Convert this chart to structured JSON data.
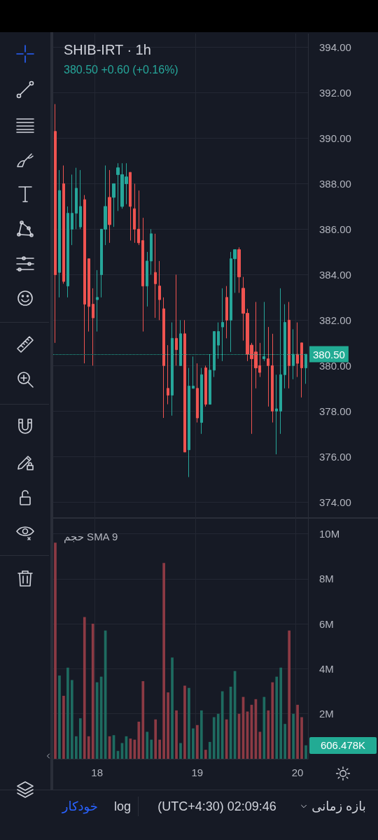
{
  "chart_data": [
    {
      "type": "candlestick",
      "title": "SHIB-IRT · 1h",
      "subtitle": "380.50 +0.60 (+0.16%)",
      "categories": [
        null,
        null,
        null,
        null,
        null,
        null,
        null,
        null,
        null,
        null,
        "18",
        null,
        null,
        null,
        null,
        null,
        null,
        null,
        null,
        null,
        null,
        null,
        null,
        null,
        null,
        null,
        null,
        null,
        null,
        null,
        null,
        null,
        null,
        null,
        "19",
        null,
        null,
        null,
        null,
        null,
        null,
        null,
        null,
        null,
        null,
        null,
        null,
        null,
        null,
        null,
        null,
        null,
        null,
        null,
        null,
        null,
        null,
        null,
        "20",
        null,
        null
      ],
      "ohlc": [
        [
          390.3,
          391.5,
          381.0,
          384.0
        ],
        [
          384.1,
          388.6,
          383.0,
          387.7
        ],
        [
          388.0,
          388.8,
          383.6,
          383.7
        ],
        [
          383.5,
          387.0,
          383.0,
          386.7
        ],
        [
          386.0,
          388.4,
          385.3,
          386.7
        ],
        [
          386.7,
          388.7,
          386.0,
          387.8
        ],
        [
          386.1,
          388.6,
          386.0,
          387.0
        ],
        [
          387.3,
          387.5,
          380.1,
          382.7
        ],
        [
          384.7,
          384.7,
          381.5,
          382.6
        ],
        [
          382.7,
          383.4,
          380.0,
          382.1
        ],
        [
          382.9,
          384.2,
          381.5,
          383.0
        ],
        [
          384.0,
          386.0,
          383.0,
          386.0
        ],
        [
          386.0,
          388.8,
          385.3,
          387.0
        ],
        [
          387.4,
          388.6,
          385.4,
          386.2
        ],
        [
          387.4,
          388.0,
          386.1,
          388.0
        ],
        [
          388.4,
          388.9,
          386.8,
          388.7
        ],
        [
          387.0,
          388.9,
          386.9,
          388.4
        ],
        [
          388.0,
          388.9,
          387.1,
          388.3
        ],
        [
          388.5,
          388.5,
          385.5,
          387.0
        ],
        [
          386.9,
          388.0,
          385.4,
          386.0
        ],
        [
          386.0,
          387.7,
          385.3,
          385.4
        ],
        [
          385.5,
          386.5,
          381.5,
          383.5
        ],
        [
          383.5,
          385.0,
          382.6,
          384.6
        ],
        [
          384.6,
          386.0,
          384.0,
          385.8
        ],
        [
          384.1,
          385.8,
          382.1,
          383.6
        ],
        [
          383.5,
          384.6,
          382.0,
          382.9
        ],
        [
          382.5,
          383.0,
          377.7,
          380.0
        ],
        [
          379.0,
          380.9,
          378.3,
          378.7
        ],
        [
          378.7,
          381.9,
          377.8,
          381.2
        ],
        [
          381.2,
          384.0,
          380.0,
          380.7
        ],
        [
          380.0,
          382.0,
          380.0,
          381.4
        ],
        [
          381.4,
          382.0,
          376.2,
          376.2
        ],
        [
          376.3,
          379.9,
          375.1,
          379.1
        ],
        [
          379.0,
          380.4,
          379.0,
          379.1
        ],
        [
          379.0,
          380.1,
          377.5,
          377.7
        ],
        [
          377.5,
          379.9,
          377.0,
          379.6
        ],
        [
          379.9,
          380.0,
          378.2,
          378.3
        ],
        [
          378.3,
          380.5,
          378.3,
          379.8
        ],
        [
          379.8,
          381.5,
          379.5,
          381.5
        ],
        [
          380.9,
          381.9,
          380.3,
          381.5
        ],
        [
          381.7,
          383.4,
          380.2,
          381.9
        ],
        [
          383.0,
          383.5,
          381.2,
          382.0
        ],
        [
          382.0,
          385.0,
          380.6,
          384.7
        ],
        [
          384.7,
          385.1,
          383.2,
          385.1
        ],
        [
          385.1,
          385.2,
          383.2,
          383.9
        ],
        [
          383.4,
          383.9,
          381.1,
          382.3
        ],
        [
          382.3,
          382.5,
          380.2,
          380.5
        ],
        [
          380.9,
          381.0,
          377.0,
          380.3
        ],
        [
          380.6,
          382.8,
          379.0,
          379.9
        ],
        [
          380.0,
          381.0,
          379.5,
          379.7
        ],
        [
          380.3,
          382.8,
          380.2,
          380.4
        ],
        [
          380.3,
          381.7,
          378.2,
          380.0
        ],
        [
          380.0,
          381.4,
          377.5,
          378.0
        ],
        [
          378.0,
          379.6,
          376.1,
          378.1
        ],
        [
          378.0,
          383.4,
          377.0,
          379.6
        ],
        [
          379.6,
          382.7,
          379.0,
          381.9
        ],
        [
          382.0,
          382.8,
          379.0,
          380.0
        ],
        [
          380.0,
          381.6,
          379.4,
          380.5
        ],
        [
          380.5,
          381.9,
          379.5,
          380.1
        ],
        [
          381.0,
          381.0,
          378.6,
          379.9
        ],
        [
          379.9,
          380.5,
          379.2,
          380.5
        ]
      ],
      "colors": [
        "#ef5350",
        "#26a69a",
        "#ef5350",
        "#26a69a",
        "#26a69a",
        "#26a69a",
        "#26a69a",
        "#ef5350",
        "#ef5350",
        "#ef5350",
        "#26a69a",
        "#26a69a",
        "#26a69a",
        "#ef5350",
        "#26a69a",
        "#26a69a",
        "#26a69a",
        "#26a69a",
        "#ef5350",
        "#ef5350",
        "#ef5350",
        "#ef5350",
        "#26a69a",
        "#26a69a",
        "#ef5350",
        "#ef5350",
        "#ef5350",
        "#ef5350",
        "#26a69a",
        "#ef5350",
        "#26a69a",
        "#ef5350",
        "#26a69a",
        "#26a69a",
        "#ef5350",
        "#26a69a",
        "#ef5350",
        "#26a69a",
        "#26a69a",
        "#26a69a",
        "#26a69a",
        "#ef5350",
        "#26a69a",
        "#26a69a",
        "#ef5350",
        "#ef5350",
        "#ef5350",
        "#ef5350",
        "#ef5350",
        "#ef5350",
        "#26a69a",
        "#ef5350",
        "#ef5350",
        "#26a69a",
        "#26a69a",
        "#26a69a",
        "#ef5350",
        "#26a69a",
        "#ef5350",
        "#ef5350",
        "#26a69a"
      ],
      "ylim": [
        373.3,
        394.6
      ],
      "yticks": [
        {
          "value": 374,
          "label": "374.00"
        },
        {
          "value": 376,
          "label": "376.00"
        },
        {
          "value": 378,
          "label": "378.00"
        },
        {
          "value": 380,
          "label": "380.00"
        },
        {
          "value": 382,
          "label": "382.00"
        },
        {
          "value": 384,
          "label": "384.00"
        },
        {
          "value": 386,
          "label": "386.00"
        },
        {
          "value": 388,
          "label": "388.00"
        },
        {
          "value": 390,
          "label": "390.00"
        },
        {
          "value": 392,
          "label": "392.00"
        },
        {
          "value": 394,
          "label": "394.00"
        }
      ],
      "ref_lines": [
        {
          "axis": "y",
          "value": 380.5,
          "label": "380.50",
          "color": "#22ab94",
          "line_style": "dotted"
        }
      ],
      "grid": true,
      "tick_labels": "y"
    },
    {
      "type": "bar",
      "title": "حجم SMA 9",
      "categories": [
        null,
        null,
        null,
        null,
        null,
        null,
        null,
        null,
        null,
        null,
        "18",
        null,
        null,
        null,
        null,
        null,
        null,
        null,
        null,
        null,
        null,
        null,
        null,
        null,
        null,
        null,
        null,
        null,
        null,
        null,
        null,
        null,
        null,
        null,
        "19",
        null,
        null,
        null,
        null,
        null,
        null,
        null,
        null,
        null,
        null,
        null,
        null,
        null,
        null,
        null,
        null,
        null,
        null,
        null,
        null,
        null,
        null,
        null,
        "20",
        null,
        null
      ],
      "values": [
        9.6,
        3.7,
        2.8,
        4.05,
        3.5,
        1.0,
        1.8,
        6.3,
        1.0,
        6.0,
        3.4,
        3.65,
        5.7,
        1.0,
        1.05,
        0.35,
        0.7,
        1.0,
        0.9,
        0.85,
        1.65,
        3.45,
        1.2,
        0.85,
        1.75,
        0.85,
        8.7,
        2.95,
        4.5,
        2.15,
        0.7,
        3.25,
        3.15,
        1.35,
        1.5,
        2.15,
        0.4,
        0.75,
        1.85,
        2.0,
        3.0,
        1.75,
        3.2,
        3.9,
        2.0,
        2.75,
        2.1,
        2.4,
        2.65,
        1.2,
        2.75,
        2.15,
        3.4,
        3.65,
        4.05,
        1.55,
        5.7,
        2.0,
        2.4,
        1.85,
        0.6
      ],
      "colors": [
        "#8c3a44",
        "#1e6b60",
        "#8c3a44",
        "#1e6b60",
        "#1e6b60",
        "#1e6b60",
        "#1e6b60",
        "#8c3a44",
        "#8c3a44",
        "#8c3a44",
        "#1e6b60",
        "#1e6b60",
        "#1e6b60",
        "#8c3a44",
        "#1e6b60",
        "#1e6b60",
        "#1e6b60",
        "#1e6b60",
        "#8c3a44",
        "#8c3a44",
        "#8c3a44",
        "#8c3a44",
        "#1e6b60",
        "#1e6b60",
        "#8c3a44",
        "#8c3a44",
        "#8c3a44",
        "#8c3a44",
        "#1e6b60",
        "#8c3a44",
        "#1e6b60",
        "#8c3a44",
        "#1e6b60",
        "#1e6b60",
        "#8c3a44",
        "#1e6b60",
        "#8c3a44",
        "#1e6b60",
        "#1e6b60",
        "#1e6b60",
        "#1e6b60",
        "#8c3a44",
        "#1e6b60",
        "#1e6b60",
        "#8c3a44",
        "#8c3a44",
        "#8c3a44",
        "#8c3a44",
        "#8c3a44",
        "#8c3a44",
        "#1e6b60",
        "#8c3a44",
        "#8c3a44",
        "#1e6b60",
        "#1e6b60",
        "#1e6b60",
        "#8c3a44",
        "#1e6b60",
        "#8c3a44",
        "#8c3a44",
        "#1e6b60"
      ],
      "ylim": [
        0,
        10.7
      ],
      "yticks": [
        {
          "value": 2,
          "label": "2M"
        },
        {
          "value": 4,
          "label": "4M"
        },
        {
          "value": 6,
          "label": "6M"
        },
        {
          "value": 8,
          "label": "8M"
        },
        {
          "value": 10,
          "label": "10M"
        }
      ],
      "annotations": [
        "606.478K",
        "خودکار",
        "log",
        "(UTC+4:30) 02:09:46",
        "بازه زمانی"
      ],
      "grid": true
    }
  ]
}
